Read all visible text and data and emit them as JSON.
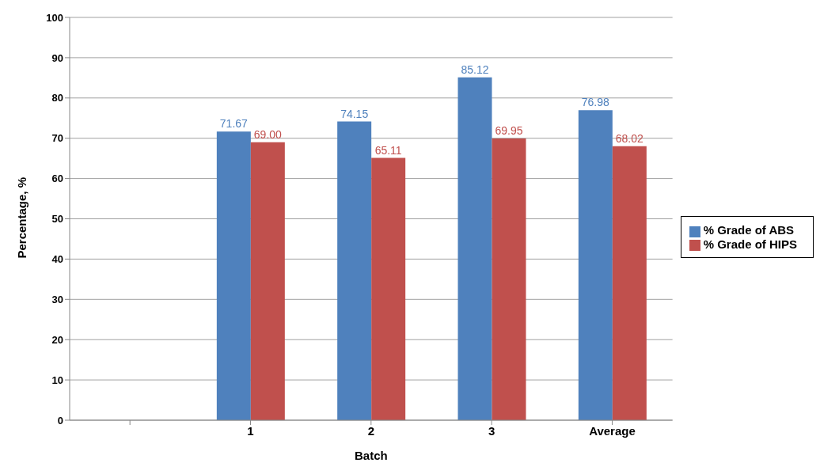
{
  "chart_data": {
    "type": "bar",
    "xlabel": "Batch",
    "ylabel": "Percentage, %",
    "categories": [
      null,
      "1",
      "2",
      "3",
      "Average"
    ],
    "series": [
      {
        "name": "% Grade of ABS",
        "color": "#4f81bd",
        "values": [
          null,
          71.67,
          74.15,
          85.12,
          76.98
        ],
        "value_labels": [
          null,
          "71.67",
          "74.15",
          "85.12",
          "76.98"
        ]
      },
      {
        "name": "% Grade of HIPS",
        "color": "#c0504d",
        "values": [
          null,
          69.0,
          65.11,
          69.95,
          68.02
        ],
        "value_labels": [
          null,
          "69.00",
          "65.11",
          "69.95",
          "68.02"
        ]
      }
    ],
    "ylim": [
      0,
      100
    ],
    "yticks": [
      0,
      10,
      20,
      30,
      40,
      50,
      60,
      70,
      80,
      90,
      100
    ],
    "grid": "y",
    "legend": "right"
  }
}
